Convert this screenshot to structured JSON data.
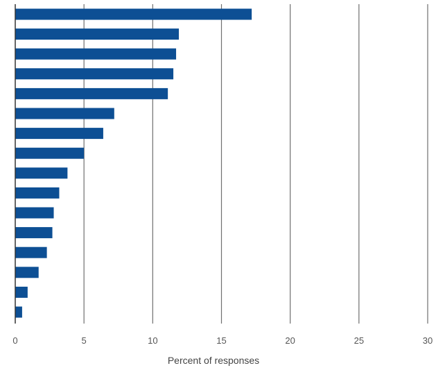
{
  "chart_data": {
    "type": "bar",
    "orientation": "horizontal",
    "title": "",
    "xlabel": "Percent of responses",
    "ylabel": "",
    "xlim": [
      0,
      30
    ],
    "x_ticks": [
      0,
      5,
      10,
      15,
      20,
      25,
      30
    ],
    "grid": "vertical",
    "legend": "none",
    "bar_color": "#0d4f94",
    "series": [
      {
        "values": [
          17.2,
          11.9,
          11.7,
          11.5,
          11.1,
          7.2,
          6.4,
          5.0,
          3.8,
          3.2,
          2.8,
          2.7,
          2.3,
          1.7,
          0.9,
          0.5
        ]
      }
    ]
  }
}
